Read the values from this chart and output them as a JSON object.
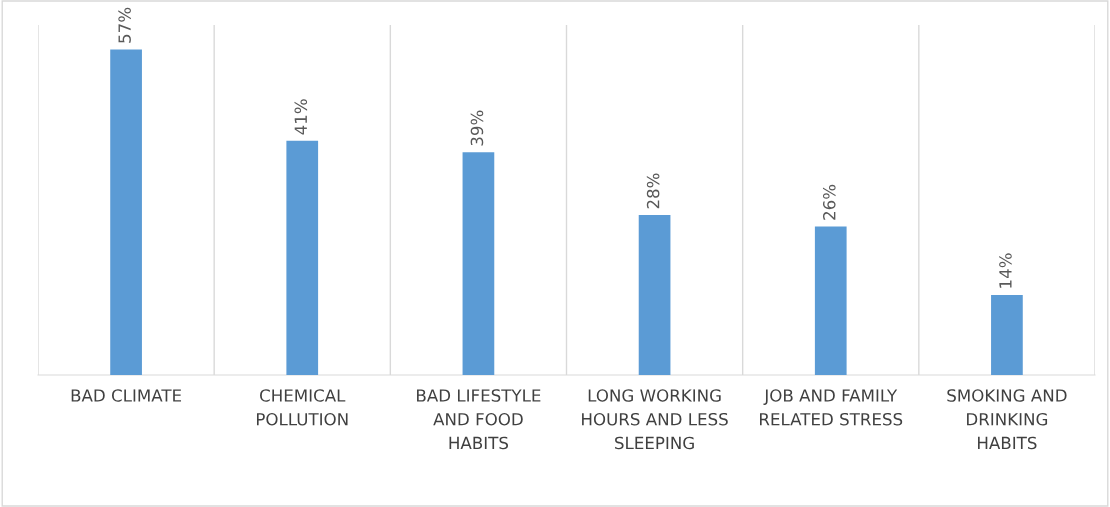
{
  "chart_data": {
    "type": "bar",
    "categories": [
      "BAD CLIMATE",
      "CHEMICAL POLLUTION",
      "BAD LIFESTYLE AND FOOD HABITS",
      "LONG WORKING HOURS AND LESS SLEEPING",
      "JOB AND FAMILY RELATED STRESS",
      "SMOKING AND DRINKING HABITS"
    ],
    "values": [
      57,
      41,
      39,
      28,
      26,
      14
    ],
    "value_labels": [
      "57%",
      "41%",
      "39%",
      "28%",
      "26%",
      "14%"
    ],
    "color": "#5b9bd5",
    "grid": "x"
  }
}
